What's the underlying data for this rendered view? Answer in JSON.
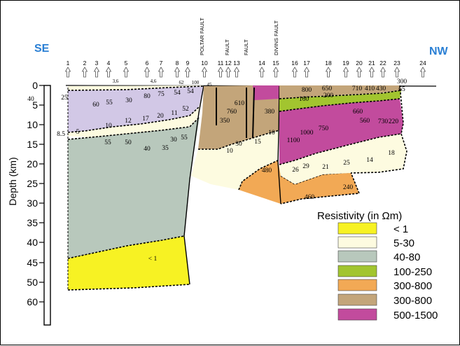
{
  "directions": {
    "left": "SE",
    "right": "NW"
  },
  "stations": [
    "1",
    "2",
    "3",
    "4",
    "5",
    "6",
    "7",
    "8",
    "9",
    "10",
    "11",
    "12",
    "13",
    "14",
    "15",
    "16",
    "17",
    "18",
    "19",
    "20",
    "21",
    "22",
    "23",
    "24"
  ],
  "faults": [
    "POLTAR FAULT",
    "FAULT",
    "FAULT",
    "DIVINS FAULT"
  ],
  "axis": {
    "label": "Depth (km)",
    "ticks": [
      "0",
      "5",
      "10",
      "15",
      "20",
      "25",
      "30",
      "35",
      "40",
      "45",
      "50",
      "60"
    ]
  },
  "legend": {
    "title": "Resistivity (in Ωm)",
    "items": [
      {
        "label": "< 1",
        "color": "#f7f223"
      },
      {
        "label": "5-30",
        "color": "#fdfbe0"
      },
      {
        "label": "40-80",
        "color": "#b8c8bc"
      },
      {
        "label": "100-250",
        "color": "#a2c52f"
      },
      {
        "label": "300-800",
        "color": "#f2a955"
      },
      {
        "label": "300-800",
        "color": "#c3a57a"
      },
      {
        "label": "500-1500",
        "color": "#c24b9d"
      }
    ]
  },
  "values": {
    "top_row": [
      "3,6",
      "4,6",
      "62",
      "100",
      "45",
      "300",
      "65"
    ],
    "lilac": [
      "40",
      "25",
      "60",
      "55",
      "30",
      "80",
      "75",
      "54",
      "54",
      "52",
      "11",
      "20",
      "17",
      "12",
      "10",
      "8.5",
      "5"
    ],
    "gray": [
      "55",
      "50",
      "40",
      "35",
      "30",
      "55"
    ],
    "yellow": [
      "< 1"
    ],
    "brown_mid": [
      "760",
      "610",
      "350",
      "380"
    ],
    "cream_mid": [
      "10",
      "30",
      "15",
      "10"
    ],
    "orange": [
      "480",
      "460",
      "240"
    ],
    "right_top": [
      "800",
      "650",
      "710",
      "410",
      "430",
      "200",
      "160"
    ],
    "magenta": [
      "660",
      "560",
      "730",
      "220",
      "750",
      "1000",
      "1100"
    ],
    "cream_right": [
      "26",
      "29",
      "21",
      "25",
      "14",
      "18"
    ]
  }
}
